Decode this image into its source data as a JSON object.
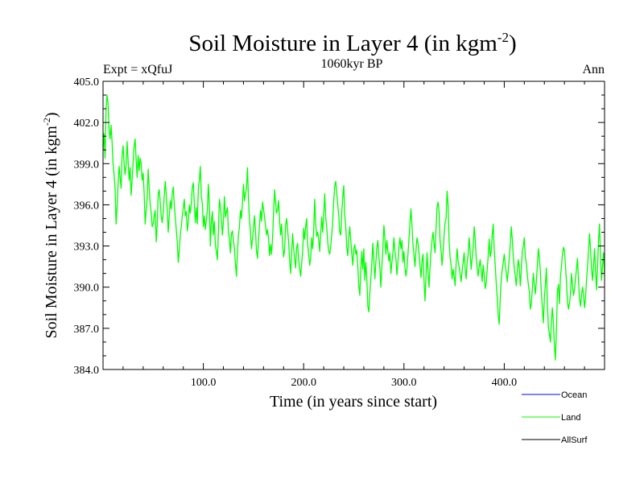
{
  "chart_data": {
    "type": "line",
    "title": "Soil Moisture in Layer 4 (in kgm",
    "title_superscript": "-2",
    "title_close": ")",
    "subtitle_left": "Expt = xQfuJ",
    "subtitle_center": "1060kyr BP",
    "subtitle_right": "Ann",
    "xlabel": "Time (in years since start)",
    "ylabel": "Soil Moisture in Layer 4 (in kgm",
    "ylabel_superscript": "-2",
    "ylabel_close": ")",
    "xlim": [
      0,
      500
    ],
    "ylim": [
      384.0,
      405.0
    ],
    "x_ticks": [
      "100.0",
      "200.0",
      "300.0",
      "400.0"
    ],
    "x_tick_values": [
      100,
      200,
      300,
      400
    ],
    "y_ticks": [
      "384.0",
      "387.0",
      "390.0",
      "393.0",
      "396.0",
      "399.0",
      "402.0",
      "405.0"
    ],
    "y_tick_values": [
      384,
      387,
      390,
      393,
      396,
      399,
      402,
      405
    ],
    "legend": [
      {
        "name": "Ocean",
        "color": "#0000ff"
      },
      {
        "name": "Land",
        "color": "#00ff00"
      },
      {
        "name": "AllSurf",
        "color": "#000000"
      }
    ],
    "series": [
      {
        "name": "Land",
        "color": "#00ff00",
        "x_start": 0,
        "x_step": 1,
        "values": [
          400.0,
          401.2,
          399.4,
          403.0,
          404.0,
          403.4,
          401.5,
          400.8,
          401.8,
          400.6,
          399.0,
          398.2,
          397.2,
          394.6,
          395.8,
          397.5,
          398.8,
          398.0,
          397.2,
          399.6,
          400.3,
          399.0,
          398.2,
          398.9,
          400.6,
          399.2,
          397.8,
          398.7,
          396.7,
          397.8,
          399.1,
          400.3,
          400.8,
          399.3,
          398.0,
          399.6,
          398.5,
          399.4,
          399.0,
          397.8,
          398.3,
          396.8,
          394.6,
          395.6,
          396.5,
          398.6,
          397.2,
          396.1,
          395.4,
          394.4,
          394.6,
          395.2,
          395.6,
          393.3,
          394.5,
          396.8,
          397.1,
          396.2,
          395.2,
          394.7,
          395.4,
          396.6,
          397.7,
          396.8,
          395.6,
          394.0,
          395.2,
          396.3,
          395.7,
          396.8,
          397.3,
          396.0,
          395.1,
          394.2,
          393.3,
          391.8,
          392.7,
          393.8,
          394.4,
          395.2,
          395.8,
          396.4,
          395.2,
          395.5,
          394.1,
          394.7,
          396.0,
          395.4,
          396.1,
          397.3,
          397.6,
          396.1,
          394.7,
          395.8,
          394.6,
          397.2,
          397.8,
          398.8,
          396.6,
          396.1,
          394.4,
          395.2,
          394.2,
          394.9,
          395.6,
          397.5,
          396.0,
          393.0,
          394.8,
          395.5,
          393.8,
          394.8,
          393.1,
          392.6,
          392.0,
          394.0,
          396.4,
          395.9,
          395.0,
          393.8,
          394.8,
          396.6,
          395.1,
          395.5,
          395.8,
          394.0,
          393.5,
          392.5,
          393.9,
          394.1,
          393.4,
          392.8,
          391.7,
          390.8,
          392.6,
          393.8,
          394.4,
          395.6,
          395.0,
          396.1,
          397.5,
          396.3,
          396.8,
          397.2,
          398.7,
          396.4,
          394.9,
          394.0,
          392.8,
          393.5,
          394.3,
          395.2,
          394.1,
          392.6,
          392.1,
          393.4,
          394.5,
          395.6,
          394.8,
          396.2,
          395.7,
          395.1,
          394.5,
          393.8,
          394.2,
          393.6,
          392.3,
          393.1,
          392.4,
          393.6,
          395.4,
          397.1,
          396.2,
          395.4,
          395.6,
          396.3,
          394.9,
          393.8,
          394.6,
          393.2,
          392.2,
          392.7,
          394.5,
          395.0,
          394.2,
          393.3,
          392.0,
          391.0,
          392.5,
          393.9,
          392.8,
          392.1,
          391.4,
          392.9,
          393.2,
          392.0,
          391.4,
          390.8,
          391.7,
          392.6,
          394.3,
          393.5,
          394.4,
          395.0,
          393.1,
          392.4,
          391.6,
          392.1,
          393.6,
          392.8,
          394.1,
          396.4,
          394.6,
          393.7,
          394.0,
          393.5,
          392.6,
          393.9,
          395.1,
          394.0,
          395.3,
          396.8,
          395.1,
          394.4,
          393.3,
          392.6,
          392.4,
          393.0,
          393.8,
          394.8,
          396.3,
          397.4,
          397.7,
          396.8,
          396.0,
          395.2,
          394.0,
          393.8,
          395.4,
          396.6,
          397.4,
          395.2,
          394.4,
          392.9,
          392.3,
          393.6,
          394.4,
          393.4,
          392.4,
          391.6,
          392.8,
          393.1,
          392.4,
          392.7,
          391.5,
          390.1,
          389.4,
          391.3,
          392.6,
          391.3,
          392.8,
          390.5,
          391.8,
          390.6,
          388.6,
          388.2,
          389.6,
          390.7,
          391.8,
          393.2,
          391.9,
          390.6,
          391.8,
          392.9,
          393.4,
          392.2,
          391.4,
          390.0,
          391.5,
          392.8,
          394.5,
          393.6,
          392.4,
          393.4,
          392.6,
          391.9,
          392.5,
          391.0,
          391.8,
          392.5,
          393.6,
          392.6,
          392.1,
          390.9,
          391.8,
          392.9,
          393.6,
          392.8,
          393.4,
          391.8,
          392.6,
          391.4,
          390.8,
          391.4,
          392.4,
          393.5,
          394.7,
          395.7,
          394.5,
          393.1,
          392.3,
          391.5,
          392.7,
          393.6,
          393.2,
          392.5,
          391.6,
          390.7,
          391.9,
          392.4,
          390.5,
          389.0,
          390.8,
          392.5,
          391.2,
          390.0,
          391.4,
          392.6,
          393.4,
          394.0,
          393.2,
          392.5,
          394.3,
          395.8,
          396.2,
          395.5,
          393.4,
          392.7,
          391.6,
          392.5,
          393.8,
          394.7,
          395.0,
          397.0,
          396.0,
          393.4,
          392.2,
          391.6,
          390.6,
          391.3,
          390.8,
          390.1,
          391.7,
          392.8,
          391.9,
          391.5,
          391.0,
          390.4,
          391.2,
          391.8,
          392.5,
          391.4,
          390.6,
          391.8,
          392.4,
          393.6,
          392.6,
          391.3,
          392.1,
          392.9,
          394.4,
          393.5,
          392.2,
          391.4,
          390.8,
          391.5,
          392.0,
          391.3,
          390.4,
          391.6,
          390.9,
          389.9,
          390.3,
          391.3,
          392.3,
          393.5,
          392.2,
          392.6,
          393.8,
          394.6,
          392.7,
          391.6,
          390.3,
          389.2,
          388.0,
          387.3,
          389.2,
          390.6,
          391.3,
          391.8,
          392.4,
          391.6,
          391.1,
          390.4,
          391.2,
          392.1,
          393.1,
          394.4,
          393.5,
          392.2,
          391.4,
          390.8,
          390.1,
          391.2,
          392.0,
          391.4,
          390.1,
          391.3,
          392.6,
          393.0,
          393.6,
          392.2,
          391.7,
          390.9,
          390.2,
          389.7,
          388.4,
          388.8,
          389.9,
          391.0,
          390.2,
          389.5,
          390.4,
          391.6,
          392.8,
          392.1,
          391.2,
          389.6,
          388.5,
          387.4,
          389.2,
          390.2,
          391.4,
          388.8,
          387.1,
          386.6,
          386.0,
          387.5,
          388.5,
          387.4,
          385.8,
          384.7,
          386.8,
          389.7,
          390.2,
          388.8,
          390.7,
          391.5,
          392.4,
          392.9,
          392.7,
          391.6,
          390.4,
          389.0,
          388.4,
          388.8,
          389.5,
          391.0,
          390.2,
          389.4,
          389.8,
          390.6,
          391.3,
          392.1,
          390.6,
          389.2,
          388.6,
          389.4,
          390.0,
          389.5,
          388.5,
          389.2,
          390.5,
          391.5,
          392.6,
          393.9,
          392.8,
          391.4,
          390.5,
          391.5,
          392.8,
          391.2,
          389.8,
          391.5,
          393.4,
          394.6,
          392.1,
          390.5,
          391.6,
          392.5,
          390.8
        ]
      },
      {
        "name": "Ocean",
        "color": "#0000ff",
        "values": []
      },
      {
        "name": "AllSurf",
        "color": "#000000",
        "values": []
      }
    ]
  }
}
